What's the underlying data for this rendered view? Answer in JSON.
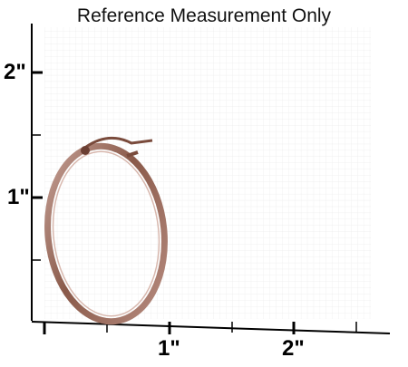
{
  "title": "Reference Measurement Only",
  "ruler": {
    "vertical_labels": [
      "2\"",
      "1\""
    ],
    "horizontal_labels": [
      "1\"",
      "2\""
    ]
  },
  "image": {
    "subject": "oval hoop earring",
    "metal_color": "#8a5a4a",
    "highlight_color": "#c9a49a"
  },
  "colors": {
    "grid": "#e2e2e2",
    "axis": "#000000"
  }
}
